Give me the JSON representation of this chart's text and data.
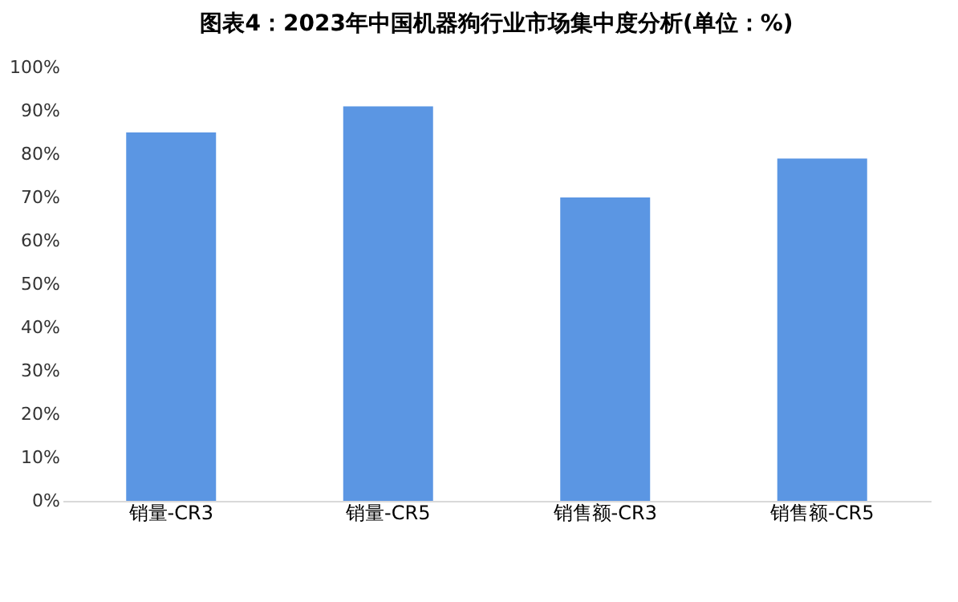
{
  "chart_data": {
    "type": "bar",
    "title": "图表4：2023年中国机器狗行业市场集中度分析(单位：%)",
    "categories": [
      "销量-CR3",
      "销量-CR5",
      "销售额-CR3",
      "销售额-CR5"
    ],
    "values": [
      85,
      91,
      70,
      79
    ],
    "color": "#5b96e3",
    "ylim": [
      0,
      100
    ],
    "yticks": [
      {
        "value": 0,
        "label": "0%"
      },
      {
        "value": 10,
        "label": "10%"
      },
      {
        "value": 20,
        "label": "20%"
      },
      {
        "value": 30,
        "label": "30%"
      },
      {
        "value": 40,
        "label": "40%"
      },
      {
        "value": 50,
        "label": "50%"
      },
      {
        "value": 60,
        "label": "60%"
      },
      {
        "value": 70,
        "label": "70%"
      },
      {
        "value": 80,
        "label": "80%"
      },
      {
        "value": 90,
        "label": "90%"
      },
      {
        "value": 100,
        "label": "100%"
      }
    ],
    "grid": false
  }
}
